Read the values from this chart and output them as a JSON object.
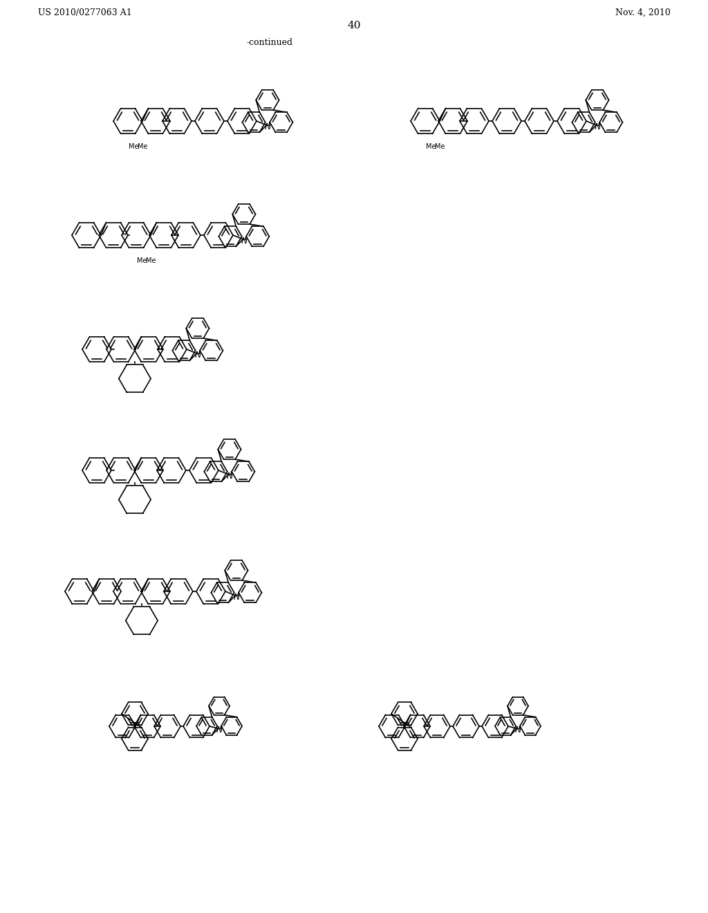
{
  "patent_number": "US 2010/0277063 A1",
  "patent_date": "Nov. 4, 2010",
  "page_number": "40",
  "continued_label": "-continued",
  "bg_color": "#ffffff",
  "line_color": "#000000"
}
